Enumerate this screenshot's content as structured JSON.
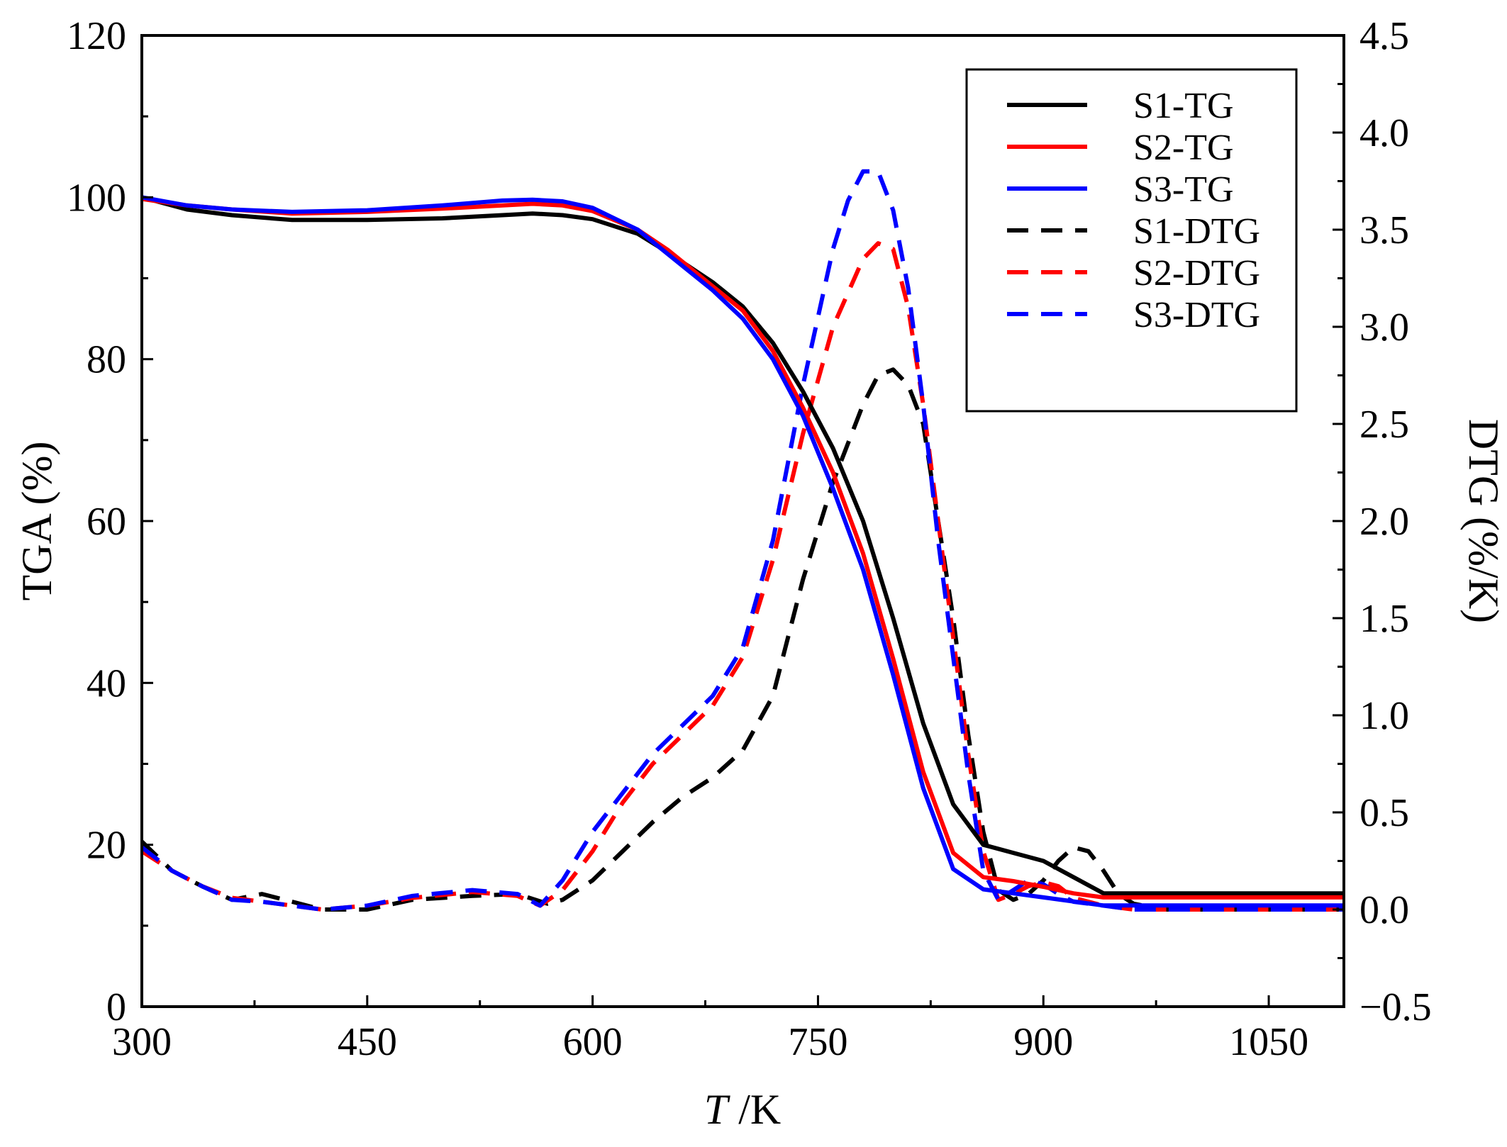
{
  "chart_data": {
    "type": "line",
    "xlabel": {
      "italic": "T",
      "rest": " /K"
    },
    "ylabel_left": "TGA (%)",
    "ylabel_right": "DTG (%/K)",
    "xlim": [
      300,
      1100
    ],
    "ylim_left": [
      0,
      120
    ],
    "ylim_right": [
      -0.5,
      4.5
    ],
    "xticks": [
      300,
      450,
      600,
      750,
      900,
      1050
    ],
    "xtick_labels": [
      "300",
      "450",
      "600",
      "750",
      "900",
      "1050"
    ],
    "yticks_left": [
      0,
      20,
      40,
      60,
      80,
      100,
      120
    ],
    "ytick_labels_left": [
      "0",
      "20",
      "40",
      "60",
      "80",
      "100",
      "120"
    ],
    "yticks_right": [
      -0.5,
      0.0,
      0.5,
      1.0,
      1.5,
      2.0,
      2.5,
      3.0,
      3.5,
      4.0,
      4.5
    ],
    "ytick_labels_right": [
      "−0.5",
      "0.0",
      "0.5",
      "1.0",
      "1.5",
      "2.0",
      "2.5",
      "3.0",
      "3.5",
      "4.0",
      "4.5"
    ],
    "legend_position": "top-right",
    "series": [
      {
        "name": "S1-TG",
        "axis": "left",
        "color": "#000000",
        "dash": "solid",
        "x": [
          300,
          330,
          360,
          400,
          450,
          500,
          540,
          560,
          580,
          600,
          630,
          650,
          680,
          700,
          720,
          740,
          760,
          780,
          800,
          820,
          840,
          860,
          880,
          900,
          920,
          940,
          960,
          1000,
          1050,
          1100
        ],
        "y": [
          100,
          98.5,
          97.8,
          97.2,
          97.2,
          97.4,
          97.8,
          98,
          97.8,
          97.3,
          95.5,
          93.2,
          89.5,
          86.5,
          82,
          76,
          69,
          60,
          48,
          35,
          25,
          20,
          19,
          18,
          16,
          14,
          14,
          14,
          14,
          14
        ]
      },
      {
        "name": "S2-TG",
        "axis": "left",
        "color": "#ff0000",
        "dash": "solid",
        "x": [
          300,
          330,
          360,
          400,
          450,
          500,
          540,
          560,
          580,
          600,
          630,
          650,
          680,
          700,
          720,
          740,
          760,
          780,
          800,
          820,
          840,
          860,
          880,
          900,
          920,
          940,
          960,
          1000,
          1050,
          1100
        ],
        "y": [
          99.8,
          99,
          98.5,
          98,
          98.2,
          98.6,
          99,
          99.2,
          99,
          98.3,
          96,
          93.5,
          89,
          86,
          81,
          74,
          66,
          56,
          43,
          29,
          19,
          16,
          15.5,
          14.8,
          14,
          13.5,
          13.5,
          13.5,
          13.5,
          13.5
        ]
      },
      {
        "name": "S3-TG",
        "axis": "left",
        "color": "#0000ff",
        "dash": "solid",
        "x": [
          300,
          330,
          360,
          400,
          450,
          500,
          540,
          560,
          580,
          600,
          630,
          650,
          680,
          700,
          720,
          740,
          760,
          780,
          800,
          820,
          840,
          860,
          880,
          900,
          920,
          940,
          960,
          1000,
          1050,
          1100
        ],
        "y": [
          100,
          99,
          98.5,
          98.2,
          98.4,
          99,
          99.6,
          99.7,
          99.5,
          98.7,
          96,
          93,
          88.5,
          85,
          80,
          73,
          64,
          54,
          41,
          27,
          17,
          14.5,
          14,
          13.5,
          13,
          12.5,
          12.5,
          12.5,
          12.5,
          12.5
        ]
      },
      {
        "name": "S1-DTG",
        "axis": "right",
        "color": "#000000",
        "dash": "dashed",
        "x": [
          300,
          320,
          340,
          360,
          380,
          400,
          420,
          450,
          480,
          520,
          550,
          570,
          580,
          600,
          620,
          640,
          660,
          680,
          700,
          720,
          740,
          760,
          780,
          790,
          800,
          810,
          820,
          830,
          840,
          850,
          860,
          870,
          880,
          890,
          900,
          910,
          920,
          930,
          940,
          950,
          960,
          980,
          1000,
          1050,
          1100
        ],
        "y": [
          0.35,
          0.2,
          0.12,
          0.05,
          0.08,
          0.04,
          0.0,
          0.0,
          0.05,
          0.07,
          0.08,
          0.03,
          0.05,
          0.15,
          0.3,
          0.45,
          0.58,
          0.68,
          0.82,
          1.1,
          1.7,
          2.2,
          2.6,
          2.75,
          2.78,
          2.7,
          2.5,
          2.0,
          1.5,
          0.9,
          0.4,
          0.1,
          0.05,
          0.08,
          0.15,
          0.25,
          0.32,
          0.3,
          0.2,
          0.08,
          0.03,
          0.0,
          0.0,
          0.0,
          0.0
        ]
      },
      {
        "name": "S2-DTG",
        "axis": "right",
        "color": "#ff0000",
        "dash": "dashed",
        "x": [
          300,
          320,
          340,
          360,
          380,
          400,
          420,
          450,
          480,
          520,
          550,
          565,
          580,
          600,
          620,
          640,
          660,
          680,
          700,
          720,
          740,
          760,
          780,
          790,
          800,
          810,
          820,
          830,
          840,
          850,
          860,
          870,
          880,
          890,
          900,
          910,
          920,
          940,
          960,
          1000,
          1050,
          1100
        ],
        "y": [
          0.3,
          0.2,
          0.12,
          0.06,
          0.04,
          0.02,
          0.0,
          0.02,
          0.06,
          0.09,
          0.07,
          0.02,
          0.1,
          0.3,
          0.55,
          0.75,
          0.9,
          1.05,
          1.3,
          1.8,
          2.45,
          3.0,
          3.35,
          3.43,
          3.4,
          3.1,
          2.6,
          2.0,
          1.4,
          0.8,
          0.3,
          0.05,
          0.08,
          0.12,
          0.14,
          0.12,
          0.06,
          0.02,
          0.0,
          0.0,
          0.0,
          0.0
        ]
      },
      {
        "name": "S3-DTG",
        "axis": "right",
        "color": "#0000ff",
        "dash": "dashed",
        "x": [
          300,
          320,
          340,
          360,
          380,
          400,
          420,
          450,
          480,
          520,
          550,
          565,
          580,
          600,
          620,
          640,
          660,
          680,
          700,
          720,
          740,
          760,
          770,
          780,
          790,
          800,
          810,
          820,
          830,
          840,
          850,
          860,
          870,
          880,
          890,
          900,
          910,
          920,
          940,
          960,
          1000,
          1050,
          1100
        ],
        "y": [
          0.32,
          0.2,
          0.12,
          0.05,
          0.04,
          0.02,
          0.0,
          0.02,
          0.07,
          0.1,
          0.08,
          0.02,
          0.15,
          0.4,
          0.6,
          0.8,
          0.95,
          1.1,
          1.35,
          1.9,
          2.7,
          3.4,
          3.65,
          3.8,
          3.8,
          3.6,
          3.2,
          2.6,
          1.9,
          1.3,
          0.7,
          0.2,
          0.05,
          0.1,
          0.15,
          0.13,
          0.08,
          0.04,
          0.02,
          0.0,
          0.0,
          0.0,
          0.0
        ]
      }
    ]
  }
}
